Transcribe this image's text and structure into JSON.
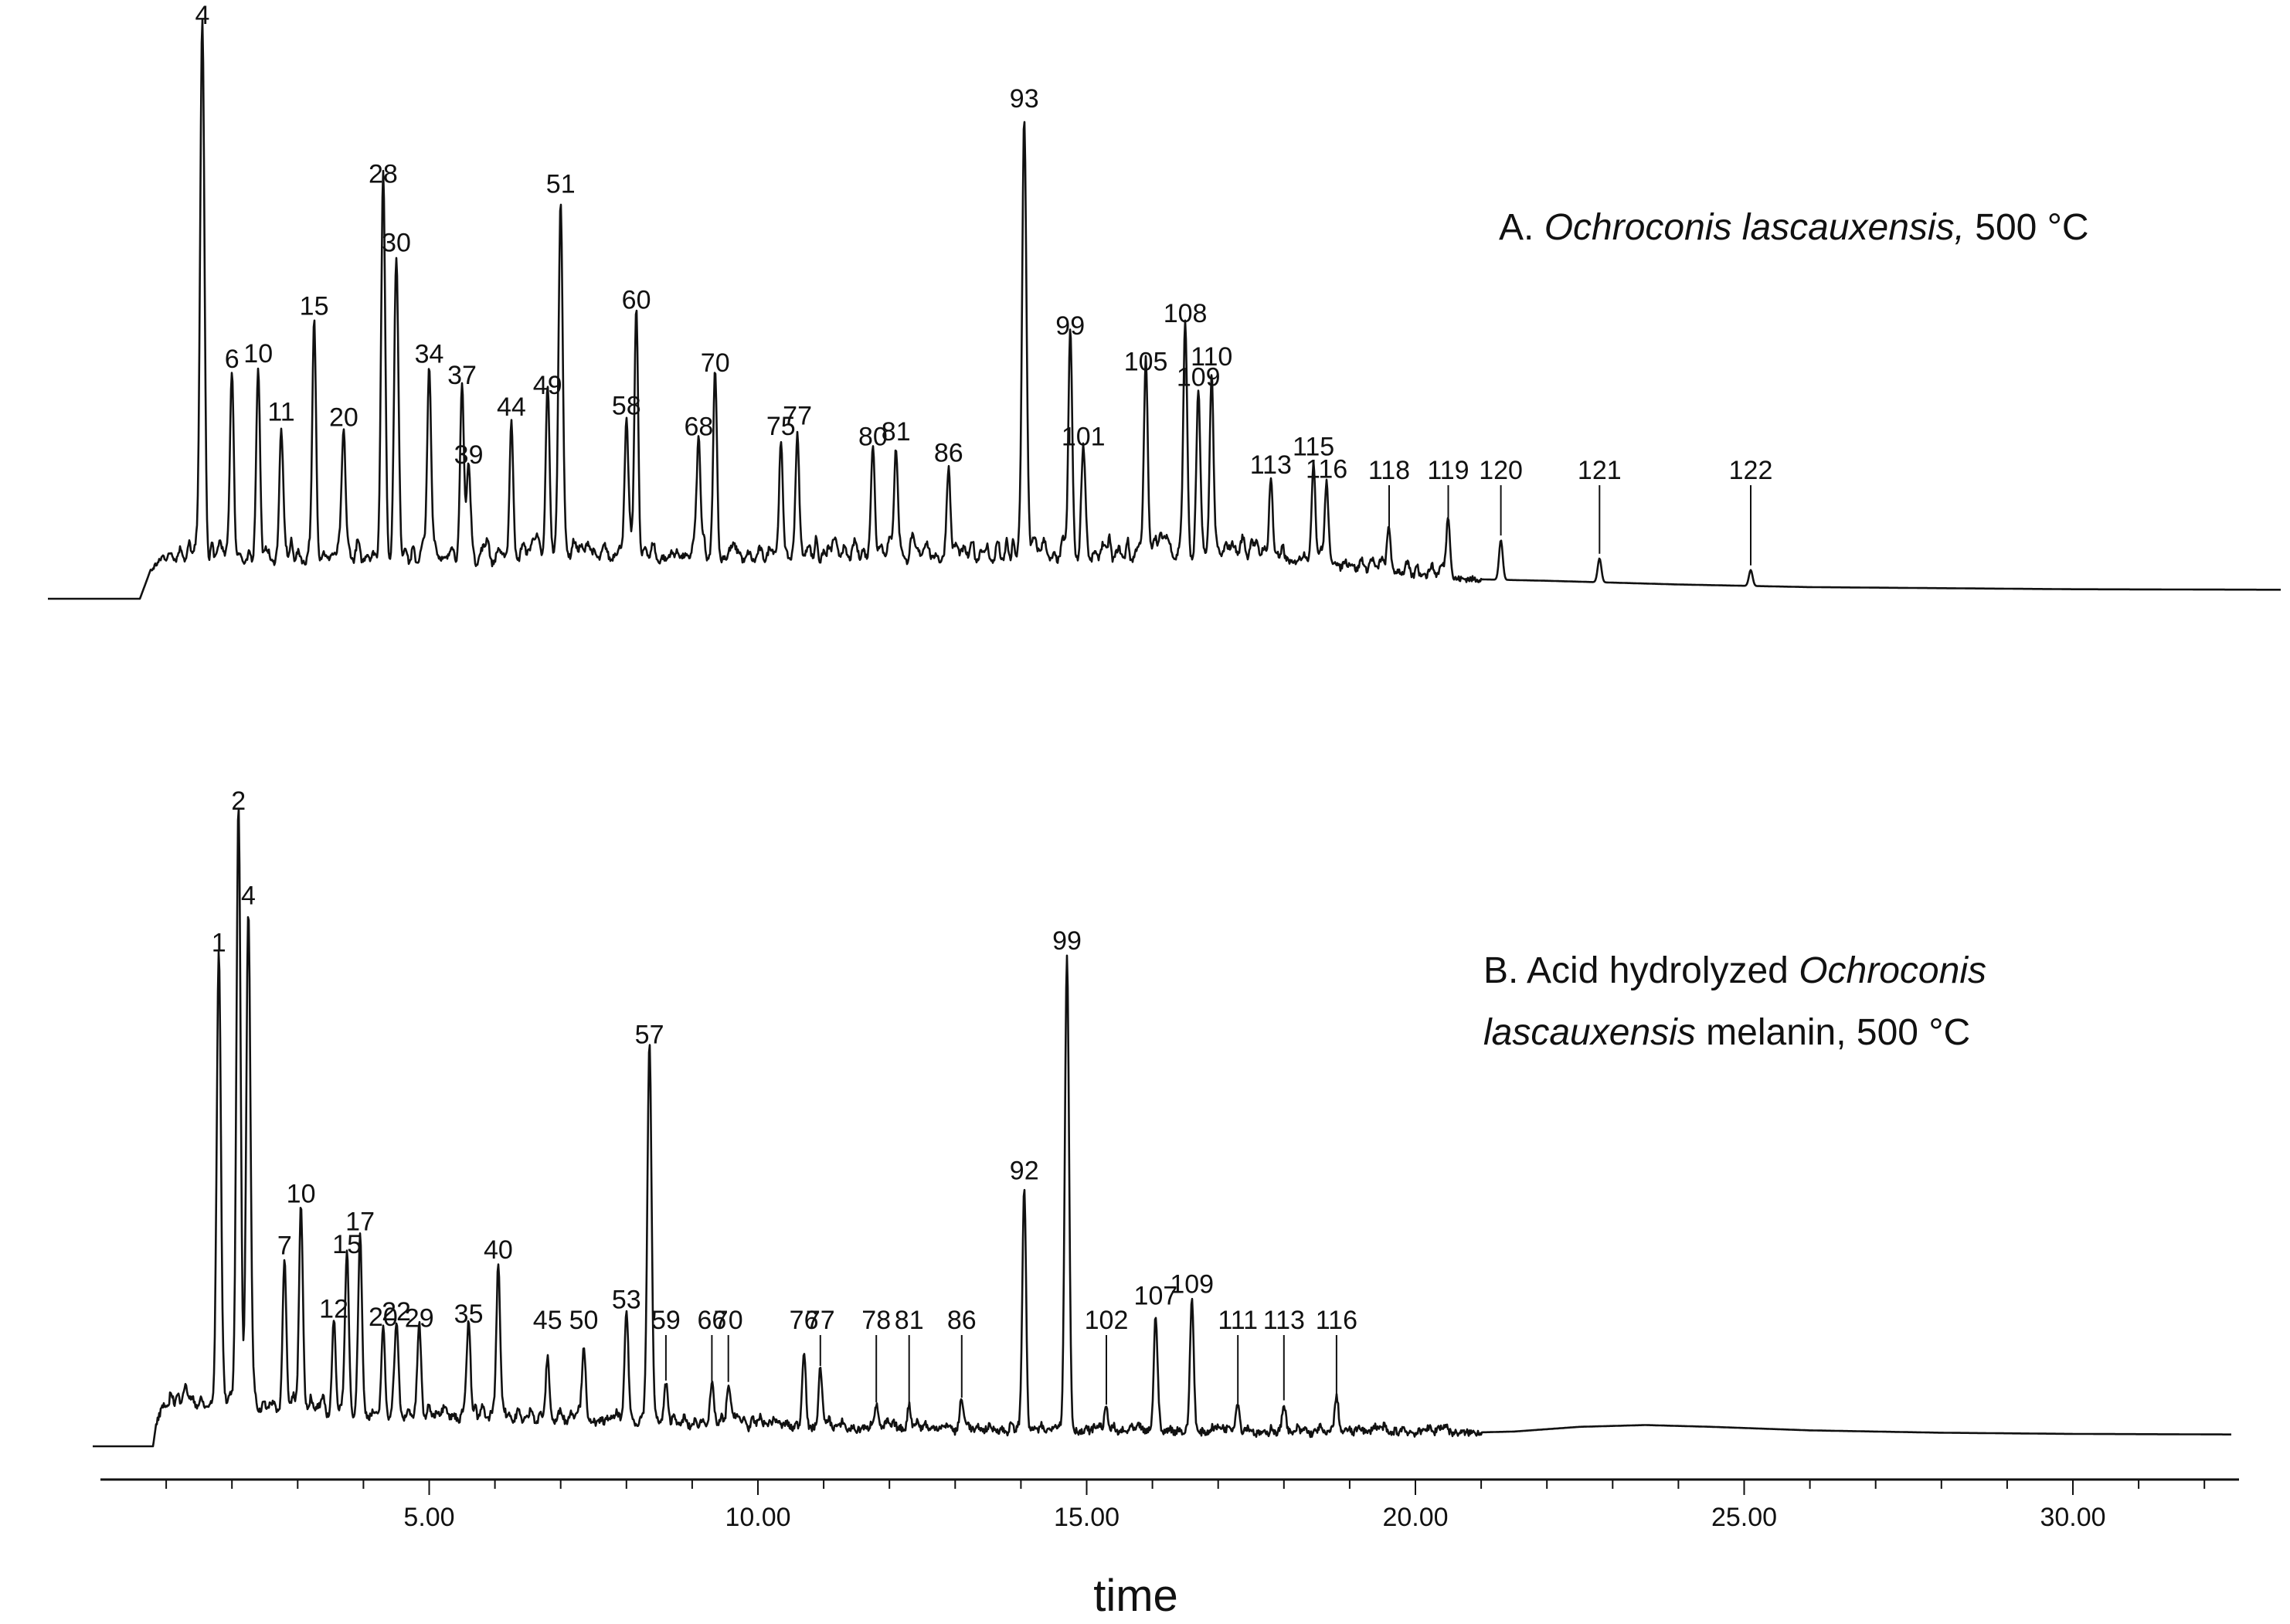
{
  "chart_data": {
    "type": "line",
    "xlabel": "time",
    "xlim": [
      0.2,
      32.5
    ],
    "x_ticks": [
      {
        "value": 5,
        "label": "5.00"
      },
      {
        "value": 10,
        "label": "10.00"
      },
      {
        "value": 15,
        "label": "15.00"
      },
      {
        "value": 20,
        "label": "20.00"
      },
      {
        "value": 25,
        "label": "25.00"
      },
      {
        "value": 30,
        "label": "30.00"
      }
    ],
    "panels": [
      {
        "id": "A",
        "title_prefix": "A. ",
        "title_italic": "Ochroconis lascauxensis,",
        "title_suffix": " 500 °C",
        "series": {
          "name": "Ochroconis lascauxensis, 500 °C",
          "baseline": {
            "x": [
              -0.6,
              0.6,
              0.75,
              1.0,
              2.5,
              4.0,
              6.0,
              8.0,
              10.0,
              12.0,
              14.0,
              15.5,
              16.5,
              17.5,
              18.5,
              19.5,
              20.5,
              22.0,
              24.0,
              26.0,
              28.0,
              30.0,
              33.3
            ],
            "y": [
              0,
              0,
              5,
              6.6,
              6.6,
              6.6,
              6.5,
              6.8,
              6.9,
              6.9,
              6.8,
              7.0,
              7.2,
              6.9,
              6.0,
              4.5,
              3.8,
              3.4,
              2.7,
              2.2,
              2.0,
              1.8,
              1.7
            ]
          },
          "peaks": [
            {
              "label": "4",
              "x": 1.55,
              "y": 100
            },
            {
              "label": "6",
              "x": 2.0,
              "y": 35
            },
            {
              "label": "10",
              "x": 2.4,
              "y": 36
            },
            {
              "label": "11",
              "x": 2.75,
              "y": 25
            },
            {
              "label": "15",
              "x": 3.25,
              "y": 45
            },
            {
              "label": "20",
              "x": 3.7,
              "y": 24
            },
            {
              "label": "28",
              "x": 4.3,
              "y": 70
            },
            {
              "label": "30",
              "x": 4.5,
              "y": 57
            },
            {
              "label": "34",
              "x": 5.0,
              "y": 36
            },
            {
              "label": "37",
              "x": 5.5,
              "y": 32
            },
            {
              "label": "39",
              "x": 5.6,
              "y": 17
            },
            {
              "label": "44",
              "x": 6.25,
              "y": 26
            },
            {
              "label": "49",
              "x": 6.8,
              "y": 30
            },
            {
              "label": "51",
              "x": 7.0,
              "y": 68
            },
            {
              "label": "58",
              "x": 8.0,
              "y": 26
            },
            {
              "label": "60",
              "x": 8.15,
              "y": 46
            },
            {
              "label": "68",
              "x": 9.1,
              "y": 22
            },
            {
              "label": "70",
              "x": 9.35,
              "y": 34
            },
            {
              "label": "75",
              "x": 10.35,
              "y": 22
            },
            {
              "label": "77",
              "x": 10.6,
              "y": 24
            },
            {
              "label": "80",
              "x": 11.75,
              "y": 20
            },
            {
              "label": "81",
              "x": 12.1,
              "y": 21
            },
            {
              "label": "86",
              "x": 12.9,
              "y": 17
            },
            {
              "label": "93",
              "x": 14.05,
              "y": 84
            },
            {
              "label": "99",
              "x": 14.75,
              "y": 41
            },
            {
              "label": "101",
              "x": 14.95,
              "y": 20
            },
            {
              "label": "105",
              "x": 15.9,
              "y": 34
            },
            {
              "label": "108",
              "x": 16.5,
              "y": 43
            },
            {
              "label": "109",
              "x": 16.7,
              "y": 31
            },
            {
              "label": "110",
              "x": 16.9,
              "y": 35
            },
            {
              "label": "113",
              "x": 17.8,
              "y": 15
            },
            {
              "label": "115",
              "x": 18.45,
              "y": 19
            },
            {
              "label": "116",
              "x": 18.65,
              "y": 15
            },
            {
              "label": "118",
              "x": 19.6,
              "y": 7
            },
            {
              "label": "119",
              "x": 20.5,
              "y": 10
            },
            {
              "label": "120",
              "x": 21.3,
              "y": 7.5
            },
            {
              "label": "121",
              "x": 22.8,
              "y": 4.5
            },
            {
              "label": "122",
              "x": 25.1,
              "y": 3
            }
          ]
        }
      },
      {
        "id": "B",
        "title_line1_prefix": "B. Acid hydrolyzed ",
        "title_line1_italic": "Ochroconis",
        "title_line2_italic": "lascauxensis",
        "title_line2_suffix": " melanin, 500 °C",
        "series": {
          "name": "Acid hydrolyzed Ochroconis lascauxensis melanin, 500 °C",
          "baseline": {
            "x": [
              -0.6,
              0.8,
              0.85,
              1.1,
              2.5,
              3.5,
              4.5,
              6.0,
              8.0,
              10.0,
              12.0,
              13.5,
              15.0,
              16.0,
              17.0,
              18.0,
              19.0,
              20.0,
              21.5,
              22.5,
              23.5,
              24.5,
              26.0,
              28.0,
              30.0,
              32.5
            ],
            "y": [
              0,
              0,
              4,
              6,
              6,
              5,
              4.5,
              4,
              3.5,
              3,
              2.6,
              2.4,
              2.3,
              2.2,
              2.1,
              2.0,
              2.0,
              2.1,
              2.5,
              3.3,
              3.6,
              3.3,
              2.7,
              2.3,
              2.1,
              2.0
            ]
          },
          "peaks": [
            {
              "label": "1",
              "x": 1.8,
              "y": 76
            },
            {
              "label": "2",
              "x": 2.1,
              "y": 100
            },
            {
              "label": "4",
              "x": 2.25,
              "y": 84
            },
            {
              "label": "7",
              "x": 2.8,
              "y": 25
            },
            {
              "label": "10",
              "x": 3.05,
              "y": 34
            },
            {
              "label": "12",
              "x": 3.55,
              "y": 15
            },
            {
              "label": "15",
              "x": 3.75,
              "y": 26
            },
            {
              "label": "17",
              "x": 3.95,
              "y": 30
            },
            {
              "label": "20",
              "x": 4.3,
              "y": 14
            },
            {
              "label": "22",
              "x": 4.5,
              "y": 15
            },
            {
              "label": "29",
              "x": 4.85,
              "y": 14
            },
            {
              "label": "35",
              "x": 5.6,
              "y": 15
            },
            {
              "label": "40",
              "x": 6.05,
              "y": 26
            },
            {
              "label": "45",
              "x": 6.8,
              "y": 11
            },
            {
              "label": "50",
              "x": 7.35,
              "y": 12
            },
            {
              "label": "53",
              "x": 8.0,
              "y": 18
            },
            {
              "label": "57",
              "x": 8.35,
              "y": 63
            },
            {
              "label": "59",
              "x": 8.6,
              "y": 7
            },
            {
              "label": "66",
              "x": 9.3,
              "y": 6
            },
            {
              "label": "70",
              "x": 9.55,
              "y": 7
            },
            {
              "label": "76",
              "x": 10.7,
              "y": 13
            },
            {
              "label": "77",
              "x": 10.95,
              "y": 10
            },
            {
              "label": "78",
              "x": 11.8,
              "y": 4
            },
            {
              "label": "81",
              "x": 12.3,
              "y": 4
            },
            {
              "label": "86",
              "x": 13.1,
              "y": 5
            },
            {
              "label": "92",
              "x": 14.05,
              "y": 41
            },
            {
              "label": "99",
              "x": 14.7,
              "y": 80
            },
            {
              "label": "102",
              "x": 15.3,
              "y": 4
            },
            {
              "label": "107",
              "x": 16.05,
              "y": 20
            },
            {
              "label": "109",
              "x": 16.6,
              "y": 22
            },
            {
              "label": "111",
              "x": 17.3,
              "y": 4
            },
            {
              "label": "113",
              "x": 18.0,
              "y": 5
            },
            {
              "label": "116",
              "x": 18.8,
              "y": 6
            }
          ]
        }
      }
    ]
  }
}
